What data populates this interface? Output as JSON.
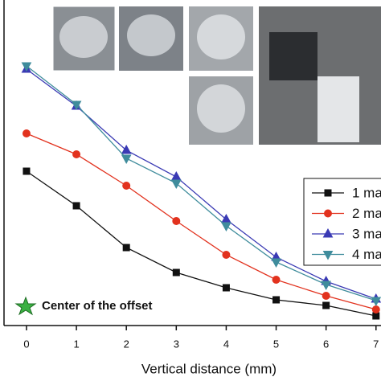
{
  "chart_data": {
    "type": "line",
    "x_label": "Vertical distance (mm)",
    "x": [
      0,
      1,
      2,
      3,
      4,
      5,
      6,
      7
    ],
    "xlim": [
      -0.45,
      7.1
    ],
    "xticks": [
      0,
      1,
      2,
      3,
      4,
      5,
      6,
      7
    ],
    "ylim": [
      0,
      400
    ],
    "annotation": "Center of the offset",
    "series": [
      {
        "name": "1 ma",
        "color": "#111111",
        "marker": "square",
        "values": [
          192,
          149,
          97,
          66,
          47,
          32,
          25,
          12
        ]
      },
      {
        "name": "2 ma",
        "color": "#e2321e",
        "marker": "circle",
        "values": [
          239,
          213,
          174,
          130,
          88,
          57,
          37,
          20
        ]
      },
      {
        "name": "3 ma",
        "color": "#3a3ab4",
        "marker": "triangle-up",
        "values": [
          319,
          273,
          218,
          185,
          132,
          85,
          55,
          33
        ]
      },
      {
        "name": "4 ma",
        "color": "#3f8c9c",
        "marker": "triangle-down",
        "values": [
          323,
          275,
          208,
          177,
          124,
          79,
          51,
          31
        ]
      }
    ]
  }
}
